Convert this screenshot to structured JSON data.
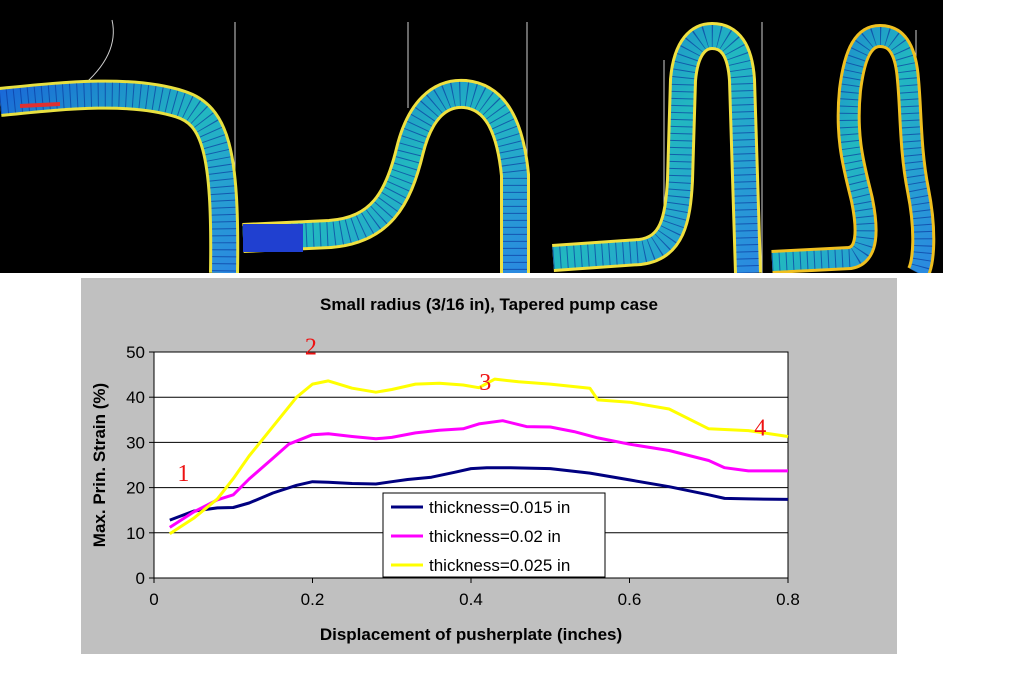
{
  "colors": {
    "panel_bg": "#c0c0c0",
    "plot_bg": "#ffffff",
    "annotation": "#ee1111"
  },
  "fea_images": [
    {
      "name": "stage-1-deformation"
    },
    {
      "name": "stage-2-deformation"
    },
    {
      "name": "stage-3-deformation"
    },
    {
      "name": "stage-4-deformation"
    }
  ],
  "chart_data": {
    "type": "line",
    "title": "Small radius (3/16 in), Tapered pump case",
    "xlabel": "Displacement of pusherplate (inches)",
    "ylabel": "Max. Prin. Strain (%)",
    "xlim": [
      0,
      0.8
    ],
    "ylim": [
      0,
      50
    ],
    "x_ticks": [
      "0",
      "0.2",
      "0.4",
      "0.6",
      "0.8"
    ],
    "y_ticks": [
      "0",
      "10",
      "20",
      "30",
      "40",
      "50"
    ],
    "grid": "horizontal",
    "legend_position": "bottom-center",
    "series": [
      {
        "name": "thickness=0.015 in",
        "color": "#000080",
        "points": [
          [
            0.02,
            12.8
          ],
          [
            0.05,
            14.8
          ],
          [
            0.08,
            15.5
          ],
          [
            0.1,
            15.6
          ],
          [
            0.12,
            16.6
          ],
          [
            0.15,
            18.8
          ],
          [
            0.18,
            20.5
          ],
          [
            0.2,
            21.3
          ],
          [
            0.22,
            21.2
          ],
          [
            0.25,
            20.9
          ],
          [
            0.28,
            20.8
          ],
          [
            0.3,
            21.3
          ],
          [
            0.32,
            21.8
          ],
          [
            0.35,
            22.3
          ],
          [
            0.38,
            23.4
          ],
          [
            0.4,
            24.2
          ],
          [
            0.42,
            24.4
          ],
          [
            0.45,
            24.4
          ],
          [
            0.5,
            24.2
          ],
          [
            0.55,
            23.2
          ],
          [
            0.6,
            21.7
          ],
          [
            0.65,
            20.2
          ],
          [
            0.7,
            18.4
          ],
          [
            0.72,
            17.6
          ],
          [
            0.75,
            17.5
          ],
          [
            0.8,
            17.4
          ]
        ]
      },
      {
        "name": "thickness=0.02 in",
        "color": "#ff00ff",
        "points": [
          [
            0.02,
            11.2
          ],
          [
            0.05,
            14.6
          ],
          [
            0.08,
            17.3
          ],
          [
            0.1,
            18.4
          ],
          [
            0.12,
            21.9
          ],
          [
            0.15,
            26.5
          ],
          [
            0.17,
            29.6
          ],
          [
            0.2,
            31.7
          ],
          [
            0.22,
            31.9
          ],
          [
            0.25,
            31.3
          ],
          [
            0.28,
            30.8
          ],
          [
            0.3,
            31.1
          ],
          [
            0.33,
            32.1
          ],
          [
            0.36,
            32.7
          ],
          [
            0.39,
            33.0
          ],
          [
            0.41,
            34.1
          ],
          [
            0.44,
            34.8
          ],
          [
            0.47,
            33.5
          ],
          [
            0.5,
            33.4
          ],
          [
            0.53,
            32.4
          ],
          [
            0.56,
            31.0
          ],
          [
            0.6,
            29.6
          ],
          [
            0.65,
            28.2
          ],
          [
            0.7,
            26.0
          ],
          [
            0.72,
            24.4
          ],
          [
            0.75,
            23.7
          ],
          [
            0.8,
            23.7
          ]
        ]
      },
      {
        "name": "thickness=0.025 in",
        "color": "#ffff00",
        "points": [
          [
            0.02,
            9.8
          ],
          [
            0.05,
            13.2
          ],
          [
            0.08,
            17.5
          ],
          [
            0.1,
            22.0
          ],
          [
            0.12,
            27.0
          ],
          [
            0.15,
            33.5
          ],
          [
            0.18,
            40.0
          ],
          [
            0.2,
            42.9
          ],
          [
            0.22,
            43.6
          ],
          [
            0.25,
            42.0
          ],
          [
            0.28,
            41.1
          ],
          [
            0.3,
            41.7
          ],
          [
            0.33,
            42.9
          ],
          [
            0.36,
            43.1
          ],
          [
            0.39,
            42.7
          ],
          [
            0.41,
            42.1
          ],
          [
            0.43,
            44.0
          ],
          [
            0.46,
            43.4
          ],
          [
            0.5,
            42.9
          ],
          [
            0.55,
            42.0
          ],
          [
            0.56,
            39.4
          ],
          [
            0.6,
            38.9
          ],
          [
            0.65,
            37.4
          ],
          [
            0.7,
            33.0
          ],
          [
            0.75,
            32.6
          ],
          [
            0.8,
            31.3
          ]
        ]
      }
    ],
    "annotations": [
      {
        "text": "1",
        "x": 0.037,
        "y": 21.5
      },
      {
        "text": "2",
        "x": 0.198,
        "y": 49.4
      },
      {
        "text": "3",
        "x": 0.418,
        "y": 41.6
      },
      {
        "text": "4",
        "x": 0.765,
        "y": 31.5
      }
    ]
  }
}
